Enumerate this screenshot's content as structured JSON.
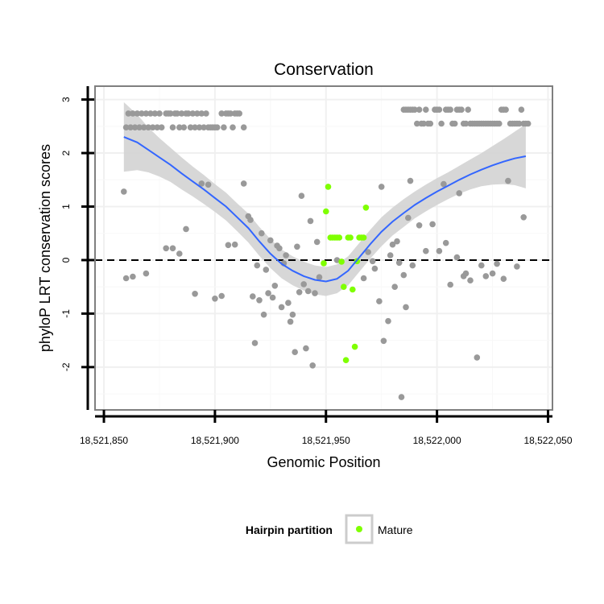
{
  "chart_data": {
    "type": "scatter",
    "title": "Conservation",
    "xlabel": "Genomic Position",
    "ylabel": "phyloP LRT conservation scores",
    "xlim": [
      18521846,
      18522052
    ],
    "ylim": [
      -2.8,
      3.25
    ],
    "x_ticks": [
      18521850,
      18521900,
      18521950,
      18522000,
      18522050
    ],
    "x_tick_labels": [
      "18,521,850",
      "18,521,900",
      "18,521,950",
      "18,522,000",
      "18,522,050"
    ],
    "y_ticks": [
      -2,
      -1,
      0,
      1,
      2,
      3
    ],
    "y_tick_labels": [
      "-2",
      "-1",
      "0",
      "1",
      "2",
      "3"
    ],
    "grid": true,
    "reference_line": {
      "y": 0,
      "style": "dashed"
    },
    "legend": {
      "title": "Hairpin partition",
      "entries": [
        {
          "label": "Mature",
          "color": "#7fff00"
        }
      ],
      "placement": "bottom"
    },
    "colors": {
      "other": "#999999",
      "mature": "#7fff00",
      "smooth": "#3366ff",
      "ribbon": "#d3d3d3",
      "panel_border": "#7f7f7f"
    },
    "series": [
      {
        "name": "Other",
        "points": [
          [
            18521860,
            2.48
          ],
          [
            18521861,
            2.74
          ],
          [
            18521862,
            2.48
          ],
          [
            18521863,
            2.74
          ],
          [
            18521864,
            2.48
          ],
          [
            18521865,
            2.74
          ],
          [
            18521866,
            2.48
          ],
          [
            18521867,
            2.74
          ],
          [
            18521868,
            2.48
          ],
          [
            18521869,
            2.74
          ],
          [
            18521870,
            2.48
          ],
          [
            18521871,
            2.74
          ],
          [
            18521872,
            2.48
          ],
          [
            18521873,
            2.74
          ],
          [
            18521874,
            2.48
          ],
          [
            18521875,
            2.74
          ],
          [
            18521876,
            2.48
          ],
          [
            18521878,
            2.74
          ],
          [
            18521879,
            2.74
          ],
          [
            18521880,
            2.74
          ],
          [
            18521881,
            2.48
          ],
          [
            18521882,
            2.74
          ],
          [
            18521883,
            2.74
          ],
          [
            18521884,
            2.48
          ],
          [
            18521885,
            2.74
          ],
          [
            18521886,
            2.48
          ],
          [
            18521887,
            2.74
          ],
          [
            18521888,
            2.74
          ],
          [
            18521889,
            2.48
          ],
          [
            18521890,
            2.74
          ],
          [
            18521891,
            2.48
          ],
          [
            18521892,
            2.74
          ],
          [
            18521893,
            2.48
          ],
          [
            18521894,
            2.74
          ],
          [
            18521895,
            2.48
          ],
          [
            18521896,
            2.74
          ],
          [
            18521897,
            2.48
          ],
          [
            18521898,
            2.48
          ],
          [
            18521899,
            2.48
          ],
          [
            18521900,
            2.48
          ],
          [
            18521901,
            2.48
          ],
          [
            18521903,
            2.74
          ],
          [
            18521904,
            2.48
          ],
          [
            18521905,
            2.74
          ],
          [
            18521906,
            2.74
          ],
          [
            18521907,
            2.74
          ],
          [
            18521908,
            2.48
          ],
          [
            18521909,
            2.74
          ],
          [
            18521910,
            2.74
          ],
          [
            18521911,
            2.74
          ],
          [
            18521913,
            2.48
          ],
          [
            18521859,
            1.28
          ],
          [
            18521860,
            -0.34
          ],
          [
            18521863,
            -0.31
          ],
          [
            18521869,
            -0.25
          ],
          [
            18521878,
            0.22
          ],
          [
            18521881,
            0.22
          ],
          [
            18521884,
            0.12
          ],
          [
            18521887,
            0.58
          ],
          [
            18521891,
            -0.63
          ],
          [
            18521894,
            1.43
          ],
          [
            18521897,
            1.41
          ],
          [
            18521900,
            -0.72
          ],
          [
            18521903,
            -0.67
          ],
          [
            18521906,
            0.28
          ],
          [
            18521909,
            0.29
          ],
          [
            18521913,
            1.43
          ],
          [
            18521915,
            0.82
          ],
          [
            18521916,
            0.75
          ],
          [
            18521917,
            -0.68
          ],
          [
            18521918,
            -1.55
          ],
          [
            18521919,
            -0.1
          ],
          [
            18521920,
            -0.75
          ],
          [
            18521921,
            0.5
          ],
          [
            18521922,
            -1.02
          ],
          [
            18521923,
            -0.18
          ],
          [
            18521924,
            -0.62
          ],
          [
            18521925,
            0.37
          ],
          [
            18521926,
            -0.7
          ],
          [
            18521927,
            -0.48
          ],
          [
            18521928,
            0.27
          ],
          [
            18521929,
            0.22
          ],
          [
            18521930,
            -0.88
          ],
          [
            18521931,
            -0.06
          ],
          [
            18521932,
            0.09
          ],
          [
            18521933,
            -0.8
          ],
          [
            18521934,
            -1.15
          ],
          [
            18521935,
            -1.02
          ],
          [
            18521936,
            -1.72
          ],
          [
            18521937,
            0.25
          ],
          [
            18521938,
            -0.6
          ],
          [
            18521939,
            1.2
          ],
          [
            18521940,
            -0.45
          ],
          [
            18521941,
            -1.65
          ],
          [
            18521942,
            -0.58
          ],
          [
            18521943,
            0.73
          ],
          [
            18521944,
            -1.97
          ],
          [
            18521945,
            -0.62
          ],
          [
            18521946,
            0.34
          ],
          [
            18521947,
            -0.32
          ],
          [
            18521955,
            -0.0
          ],
          [
            18521967,
            -0.34
          ],
          [
            18521969,
            0.15
          ],
          [
            18521971,
            -0.02
          ],
          [
            18521972,
            -0.16
          ],
          [
            18521974,
            -0.77
          ],
          [
            18521975,
            1.37
          ],
          [
            18521976,
            -1.51
          ],
          [
            18521978,
            -1.14
          ],
          [
            18521979,
            0.09
          ],
          [
            18521980,
            0.29
          ],
          [
            18521981,
            -0.5
          ],
          [
            18521982,
            0.35
          ],
          [
            18521983,
            -0.05
          ],
          [
            18521984,
            -2.56
          ],
          [
            18521985,
            -0.28
          ],
          [
            18521986,
            -0.88
          ],
          [
            18521987,
            0.79
          ],
          [
            18521988,
            1.48
          ],
          [
            18521989,
            -0.1
          ],
          [
            18521992,
            0.65
          ],
          [
            18521995,
            0.17
          ],
          [
            18521998,
            0.67
          ],
          [
            18522001,
            0.17
          ],
          [
            18522003,
            1.42
          ],
          [
            18522004,
            0.32
          ],
          [
            18522006,
            -0.46
          ],
          [
            18522009,
            0.05
          ],
          [
            18522010,
            1.25
          ],
          [
            18522012,
            -0.3
          ],
          [
            18522013,
            -0.25
          ],
          [
            18522015,
            -0.38
          ],
          [
            18522018,
            -1.82
          ],
          [
            18522020,
            -0.1
          ],
          [
            18522022,
            -0.3
          ],
          [
            18522025,
            -0.25
          ],
          [
            18522027,
            -0.07
          ],
          [
            18522030,
            -0.35
          ],
          [
            18522032,
            1.48
          ],
          [
            18522036,
            -0.12
          ],
          [
            18522039,
            0.8
          ],
          [
            18521985,
            2.81
          ],
          [
            18521986,
            2.81
          ],
          [
            18521987,
            2.81
          ],
          [
            18521988,
            2.81
          ],
          [
            18521989,
            2.81
          ],
          [
            18521990,
            2.81
          ],
          [
            18521991,
            2.55
          ],
          [
            18521992,
            2.81
          ],
          [
            18521993,
            2.55
          ],
          [
            18521994,
            2.55
          ],
          [
            18521995,
            2.81
          ],
          [
            18521996,
            2.55
          ],
          [
            18521997,
            2.55
          ],
          [
            18521999,
            2.81
          ],
          [
            18522000,
            2.81
          ],
          [
            18522001,
            2.81
          ],
          [
            18522002,
            2.55
          ],
          [
            18522004,
            2.81
          ],
          [
            18522005,
            2.81
          ],
          [
            18522006,
            2.81
          ],
          [
            18522007,
            2.55
          ],
          [
            18522008,
            2.55
          ],
          [
            18522009,
            2.81
          ],
          [
            18522010,
            2.81
          ],
          [
            18522011,
            2.81
          ],
          [
            18522012,
            2.55
          ],
          [
            18522013,
            2.55
          ],
          [
            18522014,
            2.81
          ],
          [
            18522015,
            2.55
          ],
          [
            18522016,
            2.55
          ],
          [
            18522017,
            2.55
          ],
          [
            18522018,
            2.55
          ],
          [
            18522019,
            2.55
          ],
          [
            18522020,
            2.55
          ],
          [
            18522021,
            2.55
          ],
          [
            18522022,
            2.55
          ],
          [
            18522023,
            2.55
          ],
          [
            18522024,
            2.55
          ],
          [
            18522025,
            2.55
          ],
          [
            18522026,
            2.55
          ],
          [
            18522027,
            2.55
          ],
          [
            18522028,
            2.55
          ],
          [
            18522029,
            2.81
          ],
          [
            18522030,
            2.81
          ],
          [
            18522031,
            2.81
          ],
          [
            18522033,
            2.55
          ],
          [
            18522034,
            2.55
          ],
          [
            18522035,
            2.55
          ],
          [
            18522036,
            2.55
          ],
          [
            18522037,
            2.55
          ],
          [
            18522038,
            2.81
          ],
          [
            18522039,
            2.55
          ],
          [
            18522040,
            2.55
          ],
          [
            18522041,
            2.55
          ]
        ]
      },
      {
        "name": "Mature",
        "points": [
          [
            18521949,
            -0.06
          ],
          [
            18521950,
            0.91
          ],
          [
            18521951,
            1.37
          ],
          [
            18521952,
            0.42
          ],
          [
            18521953,
            0.42
          ],
          [
            18521954,
            0.42
          ],
          [
            18521955,
            0.42
          ],
          [
            18521956,
            0.42
          ],
          [
            18521957,
            -0.03
          ],
          [
            18521958,
            -0.5
          ],
          [
            18521959,
            -1.87
          ],
          [
            18521960,
            0.42
          ],
          [
            18521961,
            0.42
          ],
          [
            18521962,
            -0.55
          ],
          [
            18521963,
            -1.62
          ],
          [
            18521964,
            -0.02
          ],
          [
            18521965,
            0.42
          ],
          [
            18521966,
            0.42
          ],
          [
            18521967,
            0.42
          ],
          [
            18521968,
            0.98
          ]
        ]
      }
    ],
    "smooth": {
      "x": [
        18521859,
        18521865,
        18521870,
        18521875,
        18521880,
        18521885,
        18521890,
        18521895,
        18521900,
        18521905,
        18521910,
        18521915,
        18521920,
        18521925,
        18521930,
        18521935,
        18521940,
        18521945,
        18521950,
        18521955,
        18521960,
        18521965,
        18521970,
        18521975,
        18521980,
        18521985,
        18521990,
        18521995,
        18522000,
        18522005,
        18522010,
        18522015,
        18522020,
        18522025,
        18522030,
        18522035,
        18522040
      ],
      "y": [
        2.3,
        2.2,
        2.06,
        1.92,
        1.78,
        1.62,
        1.47,
        1.32,
        1.16,
        1.0,
        0.8,
        0.6,
        0.35,
        0.12,
        -0.07,
        -0.2,
        -0.3,
        -0.37,
        -0.4,
        -0.35,
        -0.2,
        0.05,
        0.3,
        0.53,
        0.72,
        0.88,
        1.03,
        1.16,
        1.28,
        1.39,
        1.5,
        1.6,
        1.69,
        1.77,
        1.84,
        1.9,
        1.94
      ],
      "ribbon_halfwidth": [
        0.65,
        0.52,
        0.42,
        0.36,
        0.32,
        0.3,
        0.28,
        0.27,
        0.26,
        0.26,
        0.26,
        0.27,
        0.27,
        0.27,
        0.27,
        0.27,
        0.27,
        0.27,
        0.27,
        0.27,
        0.27,
        0.27,
        0.27,
        0.27,
        0.26,
        0.26,
        0.25,
        0.25,
        0.25,
        0.25,
        0.26,
        0.28,
        0.31,
        0.36,
        0.42,
        0.5,
        0.6
      ]
    }
  }
}
